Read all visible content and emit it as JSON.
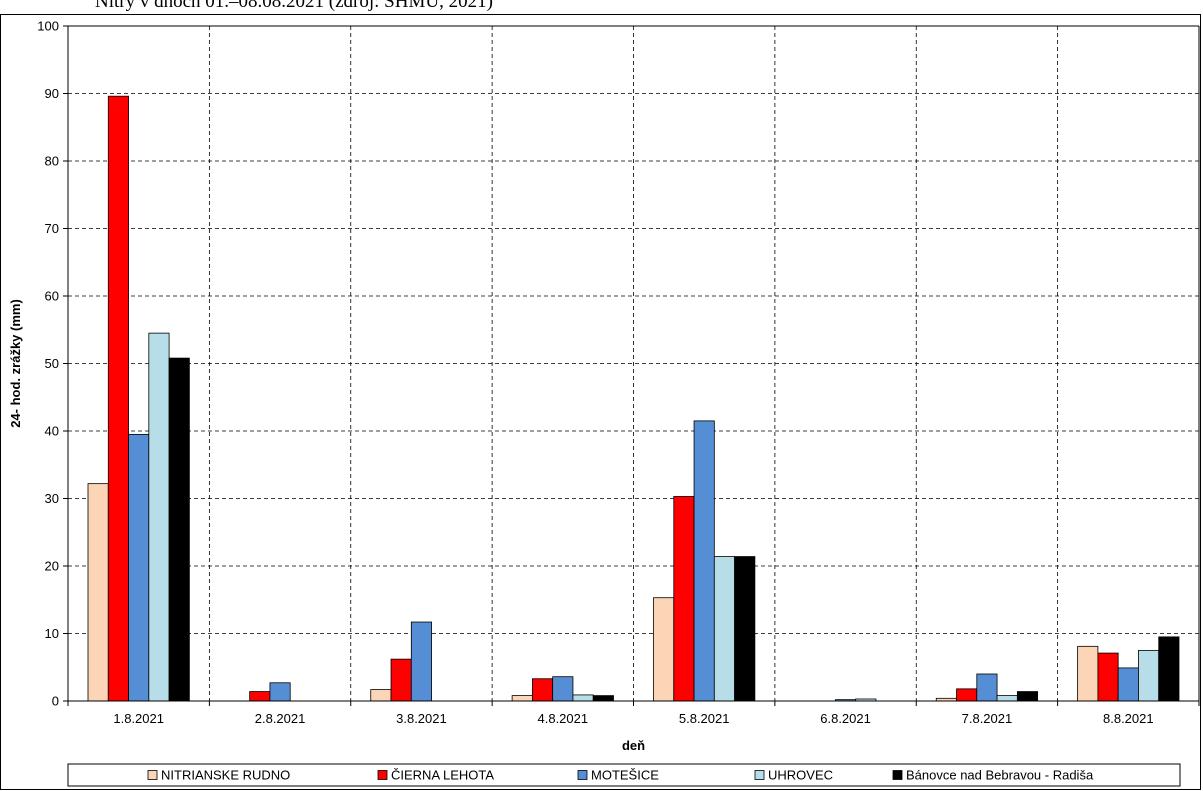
{
  "caption": "Nitry v dňoch 01.–08.08.2021 (zdroj: SHMÚ, 2021)",
  "chart_data": {
    "type": "bar",
    "xlabel": "deň",
    "ylabel": "24- hod. zrážky (mm)",
    "ylim": [
      0,
      100
    ],
    "yticks": [
      0,
      10,
      20,
      30,
      40,
      50,
      60,
      70,
      80,
      90,
      100
    ],
    "grid": true,
    "legend_position": "bottom",
    "categories": [
      "1.8.2021",
      "2.8.2021",
      "3.8.2021",
      "4.8.2021",
      "5.8.2021",
      "6.8.2021",
      "7.8.2021",
      "8.8.2021"
    ],
    "series": [
      {
        "name": "NITRIANSKE RUDNO",
        "color": "#fbd5b5",
        "values": [
          32.2,
          0,
          1.7,
          0.8,
          15.3,
          0,
          0.4,
          8.1
        ]
      },
      {
        "name": "ČIERNA LEHOTA",
        "color": "#ff0000",
        "values": [
          89.6,
          1.4,
          6.2,
          3.3,
          30.3,
          0,
          1.8,
          7.1
        ]
      },
      {
        "name": "MOTEŠICE",
        "color": "#558ed5",
        "values": [
          39.5,
          2.7,
          11.7,
          3.6,
          41.5,
          0.2,
          4.0,
          4.9
        ]
      },
      {
        "name": "UHROVEC",
        "color": "#b7dee8",
        "values": [
          54.5,
          0,
          0,
          0.9,
          21.4,
          0.3,
          0.8,
          7.5
        ]
      },
      {
        "name": "Bánovce nad Bebravou - Radiša",
        "color": "#000000",
        "values": [
          50.8,
          0,
          0,
          0.8,
          21.4,
          0,
          1.4,
          9.5
        ]
      }
    ]
  }
}
